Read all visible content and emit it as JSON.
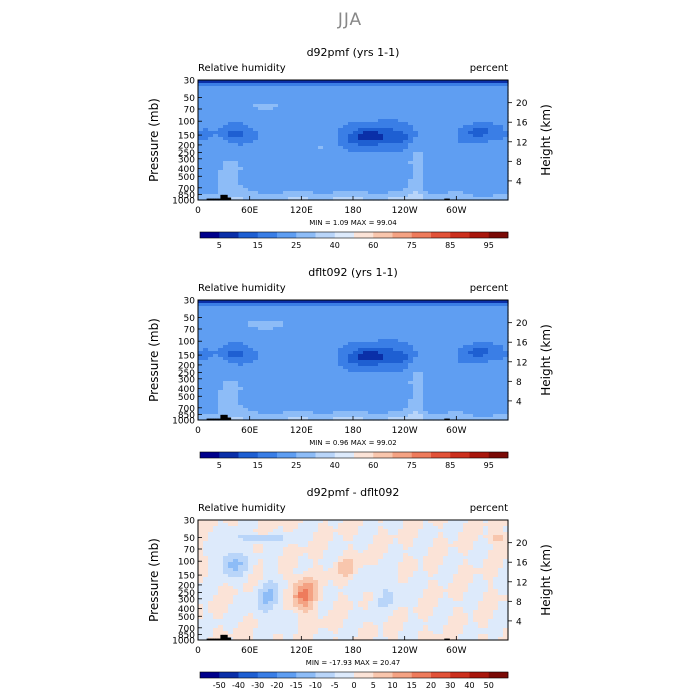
{
  "main_title": "JJA",
  "chart_data": [
    {
      "type": "heatmap",
      "title": "d92pmf (yrs 1-1)",
      "variable": "Relative humidity",
      "units": "percent",
      "ylabel": "Pressure (mb)",
      "ylabel_right": "Height (km)",
      "xticks": [
        "0",
        "60E",
        "120E",
        "180",
        "120W",
        "60W"
      ],
      "yticks": [
        "1000",
        "850",
        "700",
        "500",
        "400",
        "300",
        "250",
        "200",
        "150",
        "100",
        "70",
        "50",
        "30"
      ],
      "yticks_right": [
        "4",
        "8",
        "12",
        "16",
        "20"
      ],
      "stats": "MIN = 1.09 MAX = 99.04",
      "colorbar_labels": [
        "5",
        "15",
        "25",
        "40",
        "60",
        "75",
        "85",
        "95"
      ],
      "colorbar_colors": [
        "#00008b",
        "#0a2fa8",
        "#1e5fd2",
        "#3a7ee6",
        "#5f9ef2",
        "#8dbcf7",
        "#b9d5f9",
        "#ddeafb",
        "#fbe3d7",
        "#f8c6ad",
        "#f4a283",
        "#ee7b5c",
        "#e25238",
        "#cc2f1d",
        "#a8160c",
        "#7a0a06"
      ]
    },
    {
      "type": "heatmap",
      "title": "dflt092 (yrs 1-1)",
      "variable": "Relative humidity",
      "units": "percent",
      "ylabel": "Pressure (mb)",
      "ylabel_right": "Height (km)",
      "xticks": [
        "0",
        "60E",
        "120E",
        "180",
        "120W",
        "60W"
      ],
      "yticks": [
        "1000",
        "850",
        "700",
        "500",
        "400",
        "300",
        "250",
        "200",
        "150",
        "100",
        "70",
        "50",
        "30"
      ],
      "yticks_right": [
        "4",
        "8",
        "12",
        "16",
        "20"
      ],
      "stats": "MIN = 0.96 MAX = 99.02",
      "colorbar_labels": [
        "5",
        "15",
        "25",
        "40",
        "60",
        "75",
        "85",
        "95"
      ],
      "colorbar_colors": [
        "#00008b",
        "#0a2fa8",
        "#1e5fd2",
        "#3a7ee6",
        "#5f9ef2",
        "#8dbcf7",
        "#b9d5f9",
        "#ddeafb",
        "#fbe3d7",
        "#f8c6ad",
        "#f4a283",
        "#ee7b5c",
        "#e25238",
        "#cc2f1d",
        "#a8160c",
        "#7a0a06"
      ]
    },
    {
      "type": "heatmap",
      "title": "d92pmf - dflt092",
      "variable": "Relative humidity",
      "units": "percent",
      "ylabel": "Pressure (mb)",
      "ylabel_right": "Height (km)",
      "xticks": [
        "0",
        "60E",
        "120E",
        "180",
        "120W",
        "60W"
      ],
      "yticks": [
        "1000",
        "850",
        "700",
        "500",
        "400",
        "300",
        "250",
        "200",
        "150",
        "100",
        "70",
        "50",
        "30"
      ],
      "yticks_right": [
        "4",
        "8",
        "12",
        "16",
        "20"
      ],
      "stats": "MIN = -17.93 MAX = 20.47",
      "colorbar_labels": [
        "-50",
        "-40",
        "-30",
        "-20",
        "-15",
        "-10",
        "-5",
        "0",
        "5",
        "10",
        "15",
        "20",
        "30",
        "40",
        "50"
      ],
      "colorbar_colors": [
        "#00008b",
        "#0a2fa8",
        "#1e5fd2",
        "#3a7ee6",
        "#5f9ef2",
        "#8dbcf7",
        "#b9d5f9",
        "#ddeafb",
        "#fbe3d7",
        "#f8c6ad",
        "#f4a283",
        "#ee7b5c",
        "#e25238",
        "#cc2f1d",
        "#a8160c",
        "#7a0a06"
      ]
    }
  ]
}
